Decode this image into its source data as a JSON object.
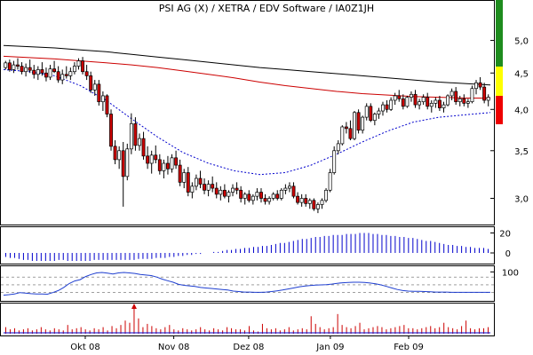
{
  "chart_data": {
    "type": "candlestick",
    "title": "PSI AG  (X)   / XETRA / EDV Software / IA0Z1JH",
    "colors": {
      "up": "#ffffff",
      "down": "#cc0000",
      "candle_outline": "#000000",
      "ma_long": "#000000",
      "ma_mid": "#cc0000",
      "ma_short": "#0000cc",
      "indicator": "#0000cc",
      "rsi_line": "#1f3fd0",
      "volume": "#cc0000",
      "signal_green": "#1e8c1e",
      "signal_yellow": "#ffff00",
      "signal_red": "#ee0000"
    },
    "price": {
      "scale": "log",
      "ylim": [
        2.78,
        5.35
      ],
      "y_ticks": [
        "3,0",
        "3,5",
        "4,0",
        "4,5",
        "5,0"
      ],
      "y_tick_values": [
        3.0,
        3.5,
        4.0,
        4.5,
        5.0
      ],
      "x_range": [
        0,
        143
      ],
      "x_ticks": [
        "Okt 08",
        "Nov 08",
        "Dez 08",
        "Jan 09",
        "Feb 09"
      ],
      "x_tick_index": [
        24,
        50,
        72,
        96,
        119
      ],
      "candles_note": "open, high, low, close per trading session",
      "candles": [
        [
          4.58,
          4.68,
          4.55,
          4.65
        ],
        [
          4.65,
          4.7,
          4.52,
          4.55
        ],
        [
          4.55,
          4.68,
          4.5,
          4.62
        ],
        [
          4.62,
          4.72,
          4.55,
          4.6
        ],
        [
          4.6,
          4.66,
          4.48,
          4.52
        ],
        [
          4.52,
          4.64,
          4.45,
          4.58
        ],
        [
          4.58,
          4.7,
          4.5,
          4.54
        ],
        [
          4.54,
          4.62,
          4.42,
          4.48
        ],
        [
          4.48,
          4.6,
          4.4,
          4.55
        ],
        [
          4.55,
          4.66,
          4.46,
          4.5
        ],
        [
          4.5,
          4.58,
          4.38,
          4.44
        ],
        [
          4.44,
          4.62,
          4.4,
          4.56
        ],
        [
          4.56,
          4.68,
          4.5,
          4.52
        ],
        [
          4.52,
          4.6,
          4.36,
          4.4
        ],
        [
          4.4,
          4.55,
          4.34,
          4.48
        ],
        [
          4.48,
          4.6,
          4.42,
          4.46
        ],
        [
          4.46,
          4.58,
          4.4,
          4.52
        ],
        [
          4.52,
          4.66,
          4.48,
          4.6
        ],
        [
          4.6,
          4.72,
          4.55,
          4.68
        ],
        [
          4.68,
          4.74,
          4.48,
          4.52
        ],
        [
          4.52,
          4.62,
          4.4,
          4.46
        ],
        [
          4.46,
          4.52,
          4.22,
          4.26
        ],
        [
          4.26,
          4.4,
          4.18,
          4.34
        ],
        [
          4.34,
          4.4,
          4.05,
          4.1
        ],
        [
          4.1,
          4.24,
          3.98,
          4.18
        ],
        [
          4.18,
          4.2,
          3.9,
          3.94
        ],
        [
          3.94,
          4.0,
          3.5,
          3.55
        ],
        [
          3.55,
          3.62,
          3.35,
          3.4
        ],
        [
          3.4,
          3.55,
          3.3,
          3.5
        ],
        [
          3.5,
          3.6,
          2.92,
          3.22
        ],
        [
          3.22,
          3.58,
          3.18,
          3.52
        ],
        [
          3.52,
          3.95,
          3.46,
          3.82
        ],
        [
          3.82,
          3.9,
          3.5,
          3.56
        ],
        [
          3.56,
          3.7,
          3.5,
          3.64
        ],
        [
          3.64,
          3.72,
          3.4,
          3.44
        ],
        [
          3.44,
          3.55,
          3.3,
          3.36
        ],
        [
          3.36,
          3.5,
          3.25,
          3.45
        ],
        [
          3.45,
          3.56,
          3.36,
          3.4
        ],
        [
          3.4,
          3.46,
          3.24,
          3.28
        ],
        [
          3.28,
          3.4,
          3.2,
          3.36
        ],
        [
          3.36,
          3.44,
          3.24,
          3.3
        ],
        [
          3.3,
          3.46,
          3.26,
          3.42
        ],
        [
          3.42,
          3.5,
          3.3,
          3.34
        ],
        [
          3.34,
          3.4,
          3.12,
          3.16
        ],
        [
          3.16,
          3.3,
          3.1,
          3.26
        ],
        [
          3.26,
          3.32,
          3.02,
          3.06
        ],
        [
          3.06,
          3.16,
          3.0,
          3.12
        ],
        [
          3.12,
          3.24,
          3.08,
          3.2
        ],
        [
          3.2,
          3.28,
          3.1,
          3.14
        ],
        [
          3.14,
          3.2,
          3.04,
          3.08
        ],
        [
          3.08,
          3.18,
          3.02,
          3.14
        ],
        [
          3.14,
          3.22,
          3.06,
          3.1
        ],
        [
          3.1,
          3.16,
          3.0,
          3.04
        ],
        [
          3.04,
          3.12,
          2.98,
          3.08
        ],
        [
          3.08,
          3.14,
          3.0,
          3.02
        ],
        [
          3.02,
          3.08,
          2.96,
          3.06
        ],
        [
          3.06,
          3.14,
          3.02,
          3.1
        ],
        [
          3.1,
          3.16,
          3.04,
          3.08
        ],
        [
          3.08,
          3.12,
          2.96,
          3.0
        ],
        [
          3.0,
          3.06,
          2.94,
          3.04
        ],
        [
          3.04,
          3.08,
          2.96,
          2.98
        ],
        [
          2.98,
          3.04,
          2.94,
          3.02
        ],
        [
          3.02,
          3.1,
          2.98,
          3.06
        ],
        [
          3.06,
          3.1,
          2.96,
          3.0
        ],
        [
          3.0,
          3.04,
          2.94,
          2.97
        ],
        [
          2.97,
          3.02,
          2.94,
          3.0
        ],
        [
          3.0,
          3.06,
          2.98,
          3.04
        ],
        [
          3.04,
          3.08,
          2.98,
          3.0
        ],
        [
          3.0,
          3.1,
          2.98,
          3.08
        ],
        [
          3.08,
          3.14,
          3.04,
          3.1
        ],
        [
          3.1,
          3.16,
          3.06,
          3.12
        ],
        [
          3.12,
          3.16,
          3.0,
          3.02
        ],
        [
          3.02,
          3.06,
          2.94,
          2.96
        ],
        [
          2.96,
          3.04,
          2.92,
          3.0
        ],
        [
          3.0,
          3.04,
          2.92,
          2.95
        ],
        [
          2.95,
          3.0,
          2.9,
          2.98
        ],
        [
          2.98,
          3.0,
          2.88,
          2.9
        ],
        [
          2.9,
          2.96,
          2.86,
          2.94
        ],
        [
          2.94,
          3.0,
          2.9,
          2.98
        ],
        [
          2.98,
          3.1,
          2.96,
          3.08
        ],
        [
          3.08,
          3.3,
          3.06,
          3.26
        ],
        [
          3.26,
          3.55,
          3.24,
          3.5
        ],
        [
          3.5,
          3.62,
          3.46,
          3.58
        ],
        [
          3.58,
          3.8,
          3.56,
          3.78
        ],
        [
          3.78,
          3.84,
          3.7,
          3.76
        ],
        [
          3.76,
          3.86,
          3.62,
          3.64
        ],
        [
          3.64,
          3.98,
          3.62,
          3.96
        ],
        [
          3.96,
          4.0,
          3.7,
          3.74
        ],
        [
          3.74,
          3.92,
          3.7,
          3.9
        ],
        [
          3.9,
          4.08,
          3.86,
          4.04
        ],
        [
          4.04,
          4.08,
          3.84,
          3.86
        ],
        [
          3.86,
          3.96,
          3.8,
          3.94
        ],
        [
          3.94,
          4.02,
          3.88,
          3.98
        ],
        [
          3.98,
          4.1,
          3.92,
          4.06
        ],
        [
          4.06,
          4.12,
          3.96,
          4.0
        ],
        [
          4.0,
          4.16,
          3.98,
          4.12
        ],
        [
          4.12,
          4.22,
          4.06,
          4.18
        ],
        [
          4.18,
          4.26,
          4.1,
          4.14
        ],
        [
          4.14,
          4.2,
          4.0,
          4.04
        ],
        [
          4.04,
          4.18,
          4.02,
          4.16
        ],
        [
          4.16,
          4.24,
          4.1,
          4.2
        ],
        [
          4.2,
          4.26,
          4.02,
          4.06
        ],
        [
          4.06,
          4.14,
          4.0,
          4.1
        ],
        [
          4.1,
          4.2,
          4.06,
          4.16
        ],
        [
          4.16,
          4.22,
          4.0,
          4.04
        ],
        [
          4.04,
          4.12,
          3.96,
          4.08
        ],
        [
          4.08,
          4.16,
          4.02,
          4.12
        ],
        [
          4.12,
          4.18,
          3.98,
          4.02
        ],
        [
          4.02,
          4.1,
          3.96,
          4.06
        ],
        [
          4.06,
          4.2,
          4.04,
          4.18
        ],
        [
          4.18,
          4.28,
          4.12,
          4.24
        ],
        [
          4.24,
          4.3,
          4.06,
          4.1
        ],
        [
          4.1,
          4.18,
          4.04,
          4.14
        ],
        [
          4.14,
          4.2,
          4.04,
          4.08
        ],
        [
          4.08,
          4.14,
          4.02,
          4.1
        ],
        [
          4.1,
          4.32,
          4.08,
          4.28
        ],
        [
          4.28,
          4.4,
          4.2,
          4.36
        ],
        [
          4.36,
          4.44,
          4.26,
          4.3
        ],
        [
          4.3,
          4.36,
          4.08,
          4.12
        ],
        [
          4.12,
          4.2,
          4.04,
          4.16
        ]
      ],
      "ma_long": [
        4.92,
        4.9,
        4.88,
        4.85,
        4.82,
        4.78,
        4.74,
        4.7,
        4.66,
        4.62,
        4.58,
        4.55,
        4.52,
        4.49,
        4.46,
        4.43,
        4.4,
        4.37,
        4.35,
        4.33
      ],
      "ma_mid": [
        4.75,
        4.73,
        4.71,
        4.68,
        4.65,
        4.62,
        4.58,
        4.53,
        4.48,
        4.43,
        4.37,
        4.32,
        4.28,
        4.24,
        4.21,
        4.19,
        4.17,
        4.16,
        4.15,
        4.15
      ],
      "ma_short": [
        4.55,
        4.52,
        4.46,
        4.32,
        4.12,
        3.88,
        3.66,
        3.48,
        3.36,
        3.28,
        3.24,
        3.26,
        3.34,
        3.46,
        3.6,
        3.73,
        3.84,
        3.9,
        3.93,
        3.96
      ]
    },
    "indicator": {
      "y_ticks": [
        "20",
        "0"
      ],
      "y_tick_values": [
        20,
        0
      ],
      "ylim": [
        -8,
        24
      ],
      "series": [
        -4,
        -5,
        -5,
        -6,
        -7,
        -7,
        -8,
        -8,
        -8,
        -8,
        -8,
        -8,
        -7,
        -7,
        -8,
        -8,
        -8,
        -8,
        -8,
        -8,
        -7,
        -7,
        -7,
        -7,
        -7,
        -7,
        -7,
        -7,
        -7,
        -7,
        -6,
        -6,
        -6,
        -6,
        -5,
        -5,
        -5,
        -4,
        -4,
        -3,
        -3,
        -2,
        -2,
        -1,
        -1,
        0,
        0,
        1,
        1,
        2,
        3,
        3,
        4,
        4,
        5,
        5,
        6,
        6,
        7,
        7,
        8,
        9,
        10,
        10,
        11,
        12,
        13,
        14,
        14,
        15,
        16,
        16,
        17,
        17,
        18,
        18,
        18,
        19,
        19,
        19,
        20,
        20,
        20,
        19,
        19,
        18,
        18,
        17,
        17,
        16,
        16,
        15,
        15,
        14,
        13,
        12,
        12,
        11,
        10,
        9,
        8,
        8,
        7,
        7,
        6,
        6,
        5,
        5,
        5,
        4
      ]
    },
    "rsi": {
      "y_ticks": [
        "100"
      ],
      "y_tick_values": [
        100
      ],
      "ylim": [
        -5,
        115
      ],
      "guides": [
        80,
        50,
        20
      ],
      "series": [
        10,
        12,
        15,
        20,
        18,
        16,
        15,
        15,
        14,
        20,
        28,
        40,
        55,
        65,
        70,
        82,
        90,
        96,
        98,
        95,
        92,
        96,
        98,
        96,
        94,
        90,
        88,
        86,
        80,
        72,
        66,
        60,
        52,
        48,
        46,
        44,
        40,
        38,
        36,
        34,
        32,
        30,
        26,
        24,
        22,
        22,
        21,
        21,
        22,
        24,
        27,
        30,
        34,
        38,
        42,
        45,
        47,
        49,
        50,
        51,
        53,
        56,
        58,
        59,
        60,
        60,
        59,
        57,
        54,
        50,
        44,
        38,
        32,
        28,
        26,
        25,
        25,
        24,
        23,
        22,
        22,
        22,
        21,
        21,
        21,
        21,
        21,
        21,
        21,
        21
      ]
    },
    "volume": {
      "marker_index": 29,
      "marker_color": "#cc0000",
      "series": [
        6,
        4,
        5,
        3,
        4,
        5,
        3,
        4,
        6,
        4,
        3,
        5,
        4,
        3,
        8,
        4,
        5,
        6,
        4,
        3,
        5,
        4,
        6,
        3,
        7,
        5,
        8,
        12,
        10,
        26,
        14,
        6,
        9,
        7,
        5,
        4,
        6,
        8,
        4,
        3,
        5,
        4,
        3,
        4,
        6,
        4,
        3,
        5,
        4,
        3,
        6,
        5,
        4,
        4,
        3,
        7,
        3,
        2,
        9,
        5,
        4,
        5,
        3,
        4,
        6,
        3,
        4,
        5,
        4,
        16,
        9,
        6,
        4,
        5,
        6,
        18,
        8,
        6,
        5,
        7,
        10,
        4,
        5,
        6,
        7,
        6,
        4,
        5,
        6,
        7,
        8,
        5,
        5,
        4,
        5,
        6,
        7,
        5,
        6,
        10,
        6,
        5,
        4,
        7,
        12,
        5,
        4,
        5,
        5,
        6
      ]
    }
  }
}
